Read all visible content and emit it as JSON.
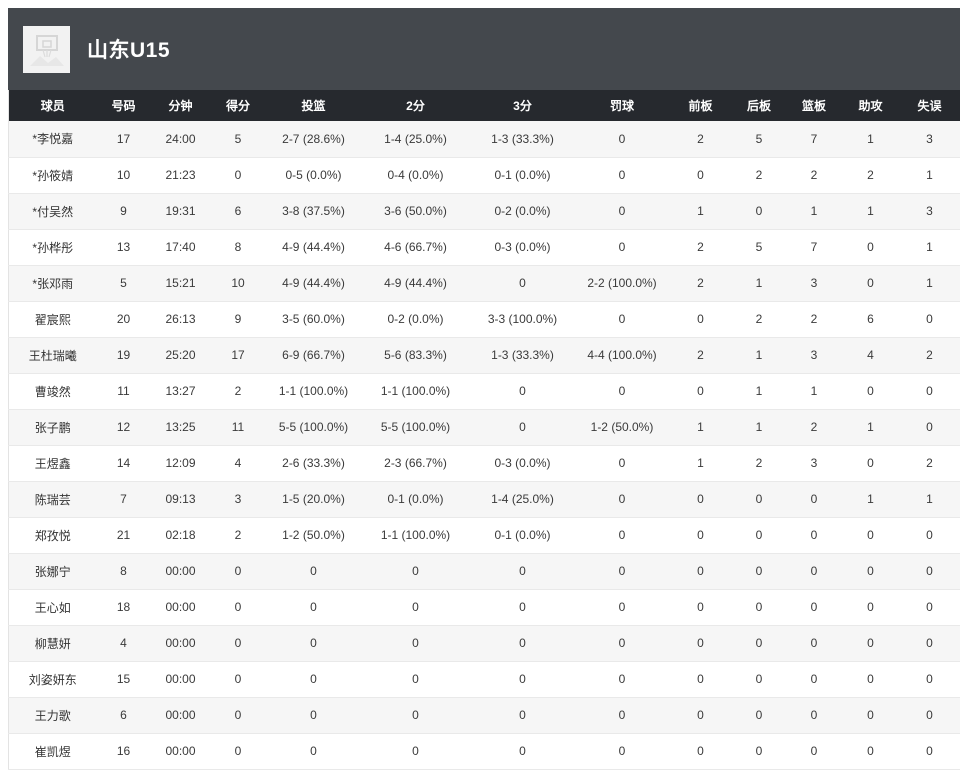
{
  "team": {
    "name": "山东U15"
  },
  "colors": {
    "header_band_bg": "#44484d",
    "table_header_bg": "#26292e",
    "row_stripe": "#f6f6f6",
    "row_border": "#e9e9e9",
    "cell_text": "#3a3a3a",
    "header_text": "#ffffff",
    "logo_bg": "#f2f2f2"
  },
  "icons": {
    "team_logo": "basketball-hoop-placeholder-icon"
  },
  "table": {
    "columns": [
      "球员",
      "号码",
      "分钟",
      "得分",
      "投篮",
      "2分",
      "3分",
      "罚球",
      "前板",
      "后板",
      "篮板",
      "助攻",
      "失误"
    ],
    "rows": [
      [
        "*李悦嘉",
        "17",
        "24:00",
        "5",
        "2-7 (28.6%)",
        "1-4 (25.0%)",
        "1-3 (33.3%)",
        "0",
        "2",
        "5",
        "7",
        "1",
        "3"
      ],
      [
        "*孙筱婧",
        "10",
        "21:23",
        "0",
        "0-5 (0.0%)",
        "0-4 (0.0%)",
        "0-1 (0.0%)",
        "0",
        "0",
        "2",
        "2",
        "2",
        "1"
      ],
      [
        "*付吴然",
        "9",
        "19:31",
        "6",
        "3-8 (37.5%)",
        "3-6 (50.0%)",
        "0-2 (0.0%)",
        "0",
        "1",
        "0",
        "1",
        "1",
        "3"
      ],
      [
        "*孙桦彤",
        "13",
        "17:40",
        "8",
        "4-9 (44.4%)",
        "4-6 (66.7%)",
        "0-3 (0.0%)",
        "0",
        "2",
        "5",
        "7",
        "0",
        "1"
      ],
      [
        "*张邓雨",
        "5",
        "15:21",
        "10",
        "4-9 (44.4%)",
        "4-9 (44.4%)",
        "0",
        "2-2 (100.0%)",
        "2",
        "1",
        "3",
        "0",
        "1"
      ],
      [
        "翟宸熙",
        "20",
        "26:13",
        "9",
        "3-5 (60.0%)",
        "0-2 (0.0%)",
        "3-3 (100.0%)",
        "0",
        "0",
        "2",
        "2",
        "6",
        "0"
      ],
      [
        "王杜瑞曦",
        "19",
        "25:20",
        "17",
        "6-9 (66.7%)",
        "5-6 (83.3%)",
        "1-3 (33.3%)",
        "4-4 (100.0%)",
        "2",
        "1",
        "3",
        "4",
        "2"
      ],
      [
        "曹竣然",
        "11",
        "13:27",
        "2",
        "1-1 (100.0%)",
        "1-1 (100.0%)",
        "0",
        "0",
        "0",
        "1",
        "1",
        "0",
        "0"
      ],
      [
        "张子鹏",
        "12",
        "13:25",
        "11",
        "5-5 (100.0%)",
        "5-5 (100.0%)",
        "0",
        "1-2 (50.0%)",
        "1",
        "1",
        "2",
        "1",
        "0"
      ],
      [
        "王煜鑫",
        "14",
        "12:09",
        "4",
        "2-6 (33.3%)",
        "2-3 (66.7%)",
        "0-3 (0.0%)",
        "0",
        "1",
        "2",
        "3",
        "0",
        "2"
      ],
      [
        "陈瑞芸",
        "7",
        "09:13",
        "3",
        "1-5 (20.0%)",
        "0-1 (0.0%)",
        "1-4 (25.0%)",
        "0",
        "0",
        "0",
        "0",
        "1",
        "1"
      ],
      [
        "郑孜悦",
        "21",
        "02:18",
        "2",
        "1-2 (50.0%)",
        "1-1 (100.0%)",
        "0-1 (0.0%)",
        "0",
        "0",
        "0",
        "0",
        "0",
        "0"
      ],
      [
        "张娜宁",
        "8",
        "00:00",
        "0",
        "0",
        "0",
        "0",
        "0",
        "0",
        "0",
        "0",
        "0",
        "0"
      ],
      [
        "王心如",
        "18",
        "00:00",
        "0",
        "0",
        "0",
        "0",
        "0",
        "0",
        "0",
        "0",
        "0",
        "0"
      ],
      [
        "柳慧妍",
        "4",
        "00:00",
        "0",
        "0",
        "0",
        "0",
        "0",
        "0",
        "0",
        "0",
        "0",
        "0"
      ],
      [
        "刘姿妍东",
        "15",
        "00:00",
        "0",
        "0",
        "0",
        "0",
        "0",
        "0",
        "0",
        "0",
        "0",
        "0"
      ],
      [
        "王力歌",
        "6",
        "00:00",
        "0",
        "0",
        "0",
        "0",
        "0",
        "0",
        "0",
        "0",
        "0",
        "0"
      ],
      [
        "崔凯煜",
        "16",
        "00:00",
        "0",
        "0",
        "0",
        "0",
        "0",
        "0",
        "0",
        "0",
        "0",
        "0"
      ]
    ]
  }
}
